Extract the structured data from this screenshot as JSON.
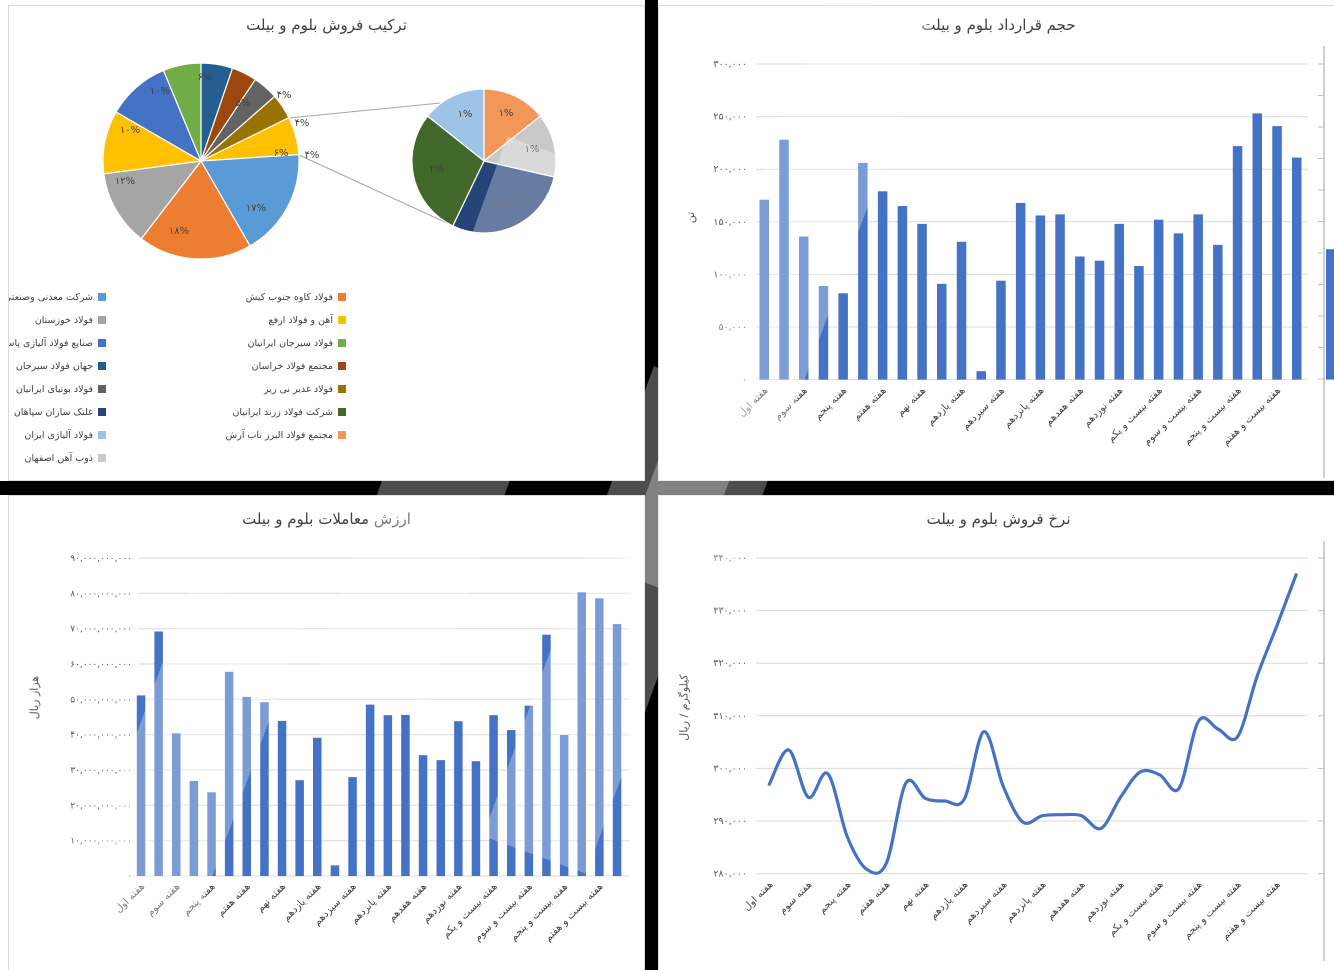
{
  "palette": {
    "bar_blue": "#4472C4",
    "grid_gray": "#D9D9D9",
    "axis_text": "#595959",
    "label_text": "#404040",
    "divider_black": "#000000"
  },
  "chart_data": [
    {
      "type": "pie",
      "variant": "pie-of-pie",
      "title": "ترکیب فروش بلوم و بیلت",
      "main_slices_clockwise_from_top": [
        {
          "label": "جهان فولاد سیرجان",
          "pct": 5,
          "pct_label": "۵%",
          "color": "#255E91"
        },
        {
          "label": "مجتمع فولاد خراسان",
          "pct": 4,
          "pct_label": "۴%",
          "color": "#9E480E"
        },
        {
          "label": "فولاد بوتیای ایرانیان",
          "pct": 4,
          "pct_label": "۴%",
          "color": "#636363"
        },
        {
          "label": "فولاد غدیر نی ریز",
          "pct": 4,
          "pct_label": "۴%",
          "color": "#997300"
        },
        {
          "label": "",
          "pct": 6,
          "pct_label": "۶%",
          "color": "#FFC000",
          "is_other_group": true
        },
        {
          "label": "شرکت معدنی وصنعتی چادرملو",
          "pct": 17,
          "pct_label": "۱۷%",
          "color": "#5B9BD5"
        },
        {
          "label": "فولاد کاوه جنوب کیش",
          "pct": 18,
          "pct_label": "۱۸%",
          "color": "#ED7D31"
        },
        {
          "label": "فولاد خوزستان",
          "pct": 12,
          "pct_label": "۱۲%",
          "color": "#A5A5A5"
        },
        {
          "label": "آهن و فولاد ارفع",
          "pct": 10,
          "pct_label": "۱۰%",
          "color": "#FFC000"
        },
        {
          "label": "صنایع فولاد آلیاژی پاسارگاد (مجتمع صنعتی ذوب آهن پاسارگاد)",
          "pct": 10,
          "pct_label": "۱۰%",
          "color": "#4472C4"
        },
        {
          "label": "فولاد سیرجان ایرانیان",
          "pct": 6,
          "pct_label": "۶%",
          "color": "#70AD47"
        }
      ],
      "secondary_slices_clockwise_from_top": [
        {
          "label": "مجتمع فولاد البرز ناب آرش",
          "pct": 1,
          "pct_label": "۱%",
          "color": "#F1975A"
        },
        {
          "label": "ذوب آهن اصفهان",
          "pct": 1,
          "pct_label": "۱%",
          "color": "#C9C9C9"
        },
        {
          "label": "غلتک سازان سپاهان",
          "pct": 2,
          "pct_label": "۲%",
          "color": "#264478"
        },
        {
          "label": "شرکت فولاد زرند ایرانیان",
          "pct": 2,
          "pct_label": "۲%",
          "color": "#43682B"
        },
        {
          "label": "فولاد آلیاژی ایران",
          "pct": 1,
          "pct_label": "۱%",
          "color": "#9DC3E6"
        }
      ],
      "legend": [
        {
          "label": "فولاد کاوه جنوب کیش",
          "color": "#ED7D31",
          "col": "right",
          "row": 0
        },
        {
          "label": "آهن و فولاد ارفع",
          "color": "#FFC000",
          "col": "right",
          "row": 1
        },
        {
          "label": "فولاد سیرجان ایرانیان",
          "color": "#70AD47",
          "col": "right",
          "row": 2
        },
        {
          "label": "مجتمع فولاد خراسان",
          "color": "#9E480E",
          "col": "right",
          "row": 3
        },
        {
          "label": "فولاد غدیر نی ریز",
          "color": "#997300",
          "col": "right",
          "row": 4
        },
        {
          "label": "شرکت فولاد زرند ایرانیان",
          "color": "#43682B",
          "col": "right",
          "row": 5
        },
        {
          "label": "مجتمع فولاد البرز ناب آرش",
          "color": "#F1975A",
          "col": "right",
          "row": 6
        },
        {
          "label": "شرکت معدنی وصنعتی چادرملو",
          "color": "#5B9BD5",
          "col": "left",
          "row": 0
        },
        {
          "label": "فولاد خوزستان",
          "color": "#A5A5A5",
          "col": "left",
          "row": 1
        },
        {
          "label": "صنایع فولاد آلیاژی پاسارگاد (مجتمع صنعتی ذوب آهن پاسارگاد)",
          "color": "#4472C4",
          "col": "left",
          "row": 2
        },
        {
          "label": "جهان فولاد سیرجان",
          "color": "#255E91",
          "col": "left",
          "row": 3
        },
        {
          "label": "فولاد بوتیای ایرانیان",
          "color": "#636363",
          "col": "left",
          "row": 4
        },
        {
          "label": "غلتک سازان سپاهان",
          "color": "#264478",
          "col": "left",
          "row": 5
        },
        {
          "label": "فولاد آلیاژی ایران",
          "color": "#9DC3E6",
          "col": "left",
          "row": 6
        },
        {
          "label": "ذوب آهن اصفهان",
          "color": "#C9C9C9",
          "col": "left",
          "row": 7
        }
      ]
    },
    {
      "type": "bar",
      "title": "حجم قرارداد بلوم و بیلت",
      "ylabel": "تن",
      "ylim": [
        0,
        300000
      ],
      "y_tick_values": [
        300000,
        250000,
        200000,
        150000,
        100000,
        50000,
        0
      ],
      "y_tick_labels": [
        "۳۰۰,۰۰۰",
        "۲۵۰,۰۰۰",
        "۲۰۰,۰۰۰",
        "۱۵۰,۰۰۰",
        "۱۰۰,۰۰۰",
        "۵۰,۰۰۰",
        "۰"
      ],
      "x_labels_shown": [
        "هفته اول",
        "هفته سوم",
        "هفته پنجم",
        "هفته هفتم",
        "هفته نهم",
        "هفته یازدهم",
        "هفته سیزدهم",
        "هفته پانزدهم",
        "هفته هفدهم",
        "هفته نوزدهم",
        "هفته بیست و یکم",
        "هفته بیست و سوم",
        "هفته بیست و پنجم",
        "هفته بیست و هفتم"
      ],
      "label_every": 2,
      "values": [
        171000,
        228000,
        136000,
        89000,
        82000,
        206000,
        179000,
        165000,
        148000,
        91000,
        131000,
        8000,
        94000,
        168000,
        156000,
        157000,
        117000,
        113000,
        148000,
        108000,
        152000,
        139000,
        157000,
        128000,
        222000,
        253000,
        241000,
        211000
      ],
      "clipped_next_chart_bar_value": 124000
    },
    {
      "type": "bar",
      "title": "ارزش معاملات بلوم و بیلت",
      "ylabel": "هزار ریال",
      "ylim": [
        0,
        90000000000
      ],
      "y_tick_values": [
        90000000000,
        80000000000,
        70000000000,
        60000000000,
        50000000000,
        40000000000,
        30000000000,
        20000000000,
        10000000000,
        0
      ],
      "y_tick_labels": [
        "۹۰,۰۰۰,۰۰۰,۰۰۰",
        "۸۰,۰۰۰,۰۰۰,۰۰۰",
        "۷۰,۰۰۰,۰۰۰,۰۰۰",
        "۶۰,۰۰۰,۰۰۰,۰۰۰",
        "۵۰,۰۰۰,۰۰۰,۰۰۰",
        "۴۰,۰۰۰,۰۰۰,۰۰۰",
        "۳۰,۰۰۰,۰۰۰,۰۰۰",
        "۲۰,۰۰۰,۰۰۰,۰۰۰",
        "۱۰,۰۰۰,۰۰۰,۰۰۰",
        "۰"
      ],
      "x_labels_shown": [
        "هفته اول",
        "هفته سوم",
        "هفته پنجم",
        "هفته هفتم",
        "هفته نهم",
        "هفته یازدهم",
        "هفته سیزدهم",
        "هفته پانزدهم",
        "هفته هفدهم",
        "هفته نوزدهم",
        "هفته بیست و یکم",
        "هفته بیست و سوم",
        "هفته بیست و پنجم",
        "هفته بیست و هفتم"
      ],
      "label_every": 2,
      "values": [
        51100000000,
        69200000000,
        40400000000,
        26900000000,
        23700000000,
        57800000000,
        50700000000,
        49200000000,
        43900000000,
        27100000000,
        39100000000,
        3000000000,
        28000000000,
        48500000000,
        45500000000,
        45600000000,
        34200000000,
        32800000000,
        43800000000,
        32500000000,
        45500000000,
        41300000000,
        48200000000,
        68300000000,
        39900000000,
        80300000000,
        78600000000,
        71300000000
      ]
    },
    {
      "type": "line",
      "title": "نرخ فروش بلوم و بیلت",
      "ylabel": "کیلوگرم / ریال",
      "ylim": [
        280000,
        340000
      ],
      "y_tick_values": [
        340000,
        330000,
        320000,
        310000,
        300000,
        290000,
        280000
      ],
      "y_tick_labels": [
        "۳۴۰,۰۰۰",
        "۳۳۰,۰۰۰",
        "۳۲۰,۰۰۰",
        "۳۱۰,۰۰۰",
        "۳۰۰,۰۰۰",
        "۲۹۰,۰۰۰",
        "۲۸۰,۰۰۰"
      ],
      "x_labels_shown": [
        "هفته اول",
        "هفته سوم",
        "هفته پنجم",
        "هفته هفتم",
        "هفته نهم",
        "هفته یازدهم",
        "هفته سیزدهم",
        "هفته پانزدهم",
        "هفته هفدهم",
        "هفته نوزدهم",
        "هفته بیست و یکم",
        "هفته بیست و سوم",
        "هفته بیست و پنجم",
        "هفته بیست و هفتم"
      ],
      "label_every": 2,
      "values": [
        297000,
        303500,
        294500,
        299000,
        287000,
        280800,
        282000,
        297200,
        294300,
        293800,
        294200,
        307000,
        296500,
        289800,
        291000,
        291200,
        291000,
        288600,
        294500,
        299300,
        298800,
        296200,
        309000,
        307500,
        306000,
        317500,
        327000,
        336800
      ]
    }
  ]
}
